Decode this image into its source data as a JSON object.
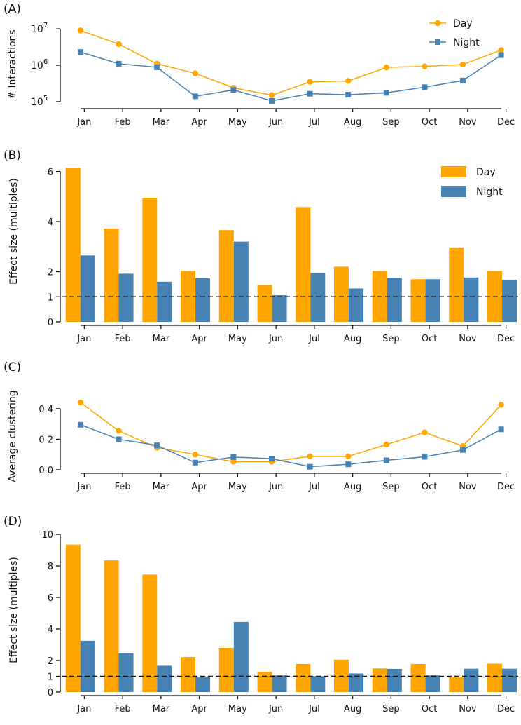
{
  "colors": {
    "day": "#ffa500",
    "night": "#4682b4",
    "axis": "#111111",
    "reference": "#111111"
  },
  "chart_data": [
    {
      "panel": "(A)",
      "type": "line",
      "yscale": "log",
      "categories": [
        "Jan",
        "Feb",
        "Mar",
        "Apr",
        "May",
        "Jun",
        "Jul",
        "Aug",
        "Sep",
        "Oct",
        "Nov",
        "Dec"
      ],
      "ylabel": "# Interactions",
      "ylim": [
        80000,
        12000000
      ],
      "yticks": [
        100000,
        1000000,
        10000000
      ],
      "ytick_labels": [
        {
          "base": "10",
          "exp": "5"
        },
        {
          "base": "10",
          "exp": "6"
        },
        {
          "base": "10",
          "exp": "7"
        }
      ],
      "legend_position": "top-right",
      "series": [
        {
          "name": "Day",
          "marker": "circle",
          "values": [
            9000000,
            3800000,
            1100000,
            600000,
            240000,
            150000,
            350000,
            370000,
            870000,
            930000,
            1050000,
            2600000
          ]
        },
        {
          "name": "Night",
          "marker": "square",
          "values": [
            2300000,
            1100000,
            880000,
            140000,
            210000,
            105000,
            165000,
            155000,
            175000,
            250000,
            380000,
            1900000
          ]
        }
      ]
    },
    {
      "panel": "(B)",
      "type": "bar",
      "categories": [
        "Jan",
        "Feb",
        "Mar",
        "Apr",
        "May",
        "Jun",
        "Jul",
        "Aug",
        "Sep",
        "Oct",
        "Nov",
        "Dec"
      ],
      "ylabel": "Effect size (multiples)",
      "ylim": [
        0,
        6.1
      ],
      "yticks": [
        0,
        1,
        2,
        4,
        6
      ],
      "reference_line": 1,
      "legend_position": "top-right",
      "series": [
        {
          "name": "Day",
          "values": [
            6.15,
            3.72,
            4.95,
            2.03,
            3.66,
            1.47,
            4.58,
            2.2,
            2.03,
            1.7,
            2.97,
            2.03
          ]
        },
        {
          "name": "Night",
          "values": [
            2.65,
            1.92,
            1.6,
            1.74,
            3.2,
            1.06,
            1.95,
            1.33,
            1.76,
            1.7,
            1.77,
            1.68
          ]
        }
      ]
    },
    {
      "panel": "(C)",
      "type": "line",
      "categories": [
        "Jan",
        "Feb",
        "Mar",
        "Apr",
        "May",
        "Jun",
        "Jul",
        "Aug",
        "Sep",
        "Oct",
        "Nov",
        "Dec"
      ],
      "ylabel": "Average clustering",
      "ylim": [
        0,
        0.45
      ],
      "yticks": [
        0.0,
        0.2,
        0.4
      ],
      "ytick_labels": [
        "0.0",
        "0.2",
        "0.4"
      ],
      "series": [
        {
          "name": "Day",
          "marker": "circle",
          "values": [
            0.44,
            0.255,
            0.145,
            0.1,
            0.053,
            0.053,
            0.088,
            0.088,
            0.165,
            0.245,
            0.155,
            0.425
          ]
        },
        {
          "name": "Night",
          "marker": "square",
          "values": [
            0.295,
            0.2,
            0.16,
            0.047,
            0.083,
            0.073,
            0.02,
            0.036,
            0.062,
            0.085,
            0.13,
            0.265
          ]
        }
      ]
    },
    {
      "panel": "(D)",
      "type": "bar",
      "categories": [
        "Jan",
        "Feb",
        "Mar",
        "Apr",
        "May",
        "Jun",
        "Jul",
        "Aug",
        "Sep",
        "Oct",
        "Nov",
        "Dec"
      ],
      "ylabel": "Effect size (multiples)",
      "ylim": [
        0,
        10
      ],
      "yticks": [
        0,
        1,
        2,
        4,
        6,
        8,
        10
      ],
      "reference_line": 1,
      "series": [
        {
          "name": "Day",
          "values": [
            9.35,
            8.35,
            7.45,
            2.22,
            2.8,
            1.28,
            1.78,
            2.05,
            1.5,
            1.78,
            0.97,
            1.8
          ]
        },
        {
          "name": "Night",
          "values": [
            3.25,
            2.48,
            1.67,
            0.97,
            4.45,
            1.06,
            1.0,
            1.18,
            1.47,
            1.06,
            1.48,
            1.48
          ]
        }
      ]
    }
  ]
}
